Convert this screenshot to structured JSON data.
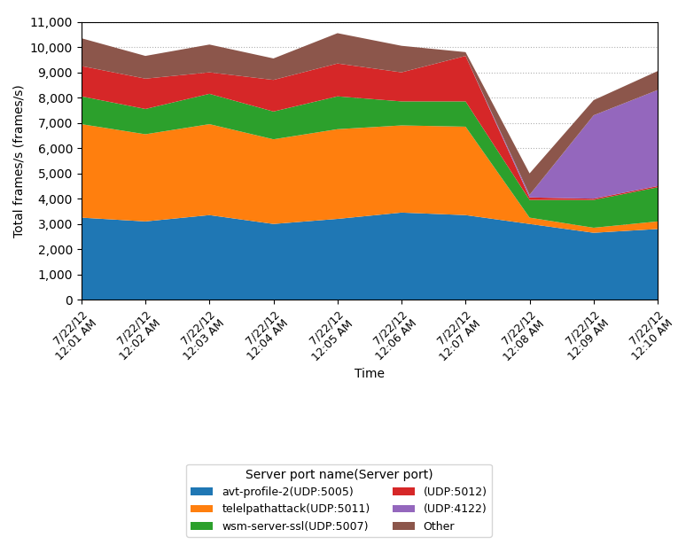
{
  "chart_data": {
    "type": "area",
    "stacked": true,
    "xlabel": "Time",
    "ylabel": "Total frames/s (frames/s)",
    "legend_title": "Server port name(Server port)",
    "legend": "lower center",
    "grid": true,
    "categories": [
      "7/22/12\n12:01 AM",
      "7/22/12\n12:02 AM",
      "7/22/12\n12:03 AM",
      "7/22/12\n12:04 AM",
      "7/22/12\n12:05 AM",
      "7/22/12\n12:06 AM",
      "7/22/12\n12:07 AM",
      "7/22/12\n12:08 AM",
      "7/22/12\n12:09 AM",
      "7/22/12\n12:10 AM"
    ],
    "series": [
      {
        "name": "avt-profile-2(UDP:5005)",
        "values": [
          3250,
          3100,
          3350,
          3000,
          3200,
          3450,
          3350,
          3000,
          2650,
          2800
        ]
      },
      {
        "name": "telelpathattack(UDP:5011)",
        "values": [
          3700,
          3450,
          3600,
          3350,
          3550,
          3450,
          3500,
          250,
          200,
          300
        ]
      },
      {
        "name": "wsm-server-ssl(UDP:5007)",
        "values": [
          1100,
          1000,
          1200,
          1100,
          1300,
          950,
          1000,
          700,
          1100,
          1350
        ]
      },
      {
        "name": "(UDP:5012)",
        "values": [
          1200,
          1200,
          850,
          1250,
          1300,
          1150,
          1800,
          100,
          50,
          50
        ]
      },
      {
        "name": "(UDP:4122)",
        "values": [
          0,
          0,
          0,
          0,
          0,
          0,
          0,
          100,
          3300,
          3800
        ]
      },
      {
        "name": "Other",
        "values": [
          1100,
          900,
          1100,
          850,
          1200,
          1050,
          150,
          850,
          600,
          750
        ]
      }
    ],
    "ylim": [
      0,
      11000
    ],
    "yticks": [
      0,
      {
        "value": 1000,
        "label": "1,000"
      },
      {
        "value": 2000,
        "label": "2,000"
      },
      {
        "value": 3000,
        "label": "3,000"
      },
      {
        "value": 4000,
        "label": "4,000"
      },
      {
        "value": 5000,
        "label": "5,000"
      },
      {
        "value": 6000,
        "label": "6,000"
      },
      {
        "value": 7000,
        "label": "7,000"
      },
      {
        "value": 8000,
        "label": "8,000"
      },
      {
        "value": 9000,
        "label": "9,000"
      },
      {
        "value": 10000,
        "label": "10,000"
      },
      {
        "value": 11000,
        "label": "11,000"
      }
    ]
  }
}
